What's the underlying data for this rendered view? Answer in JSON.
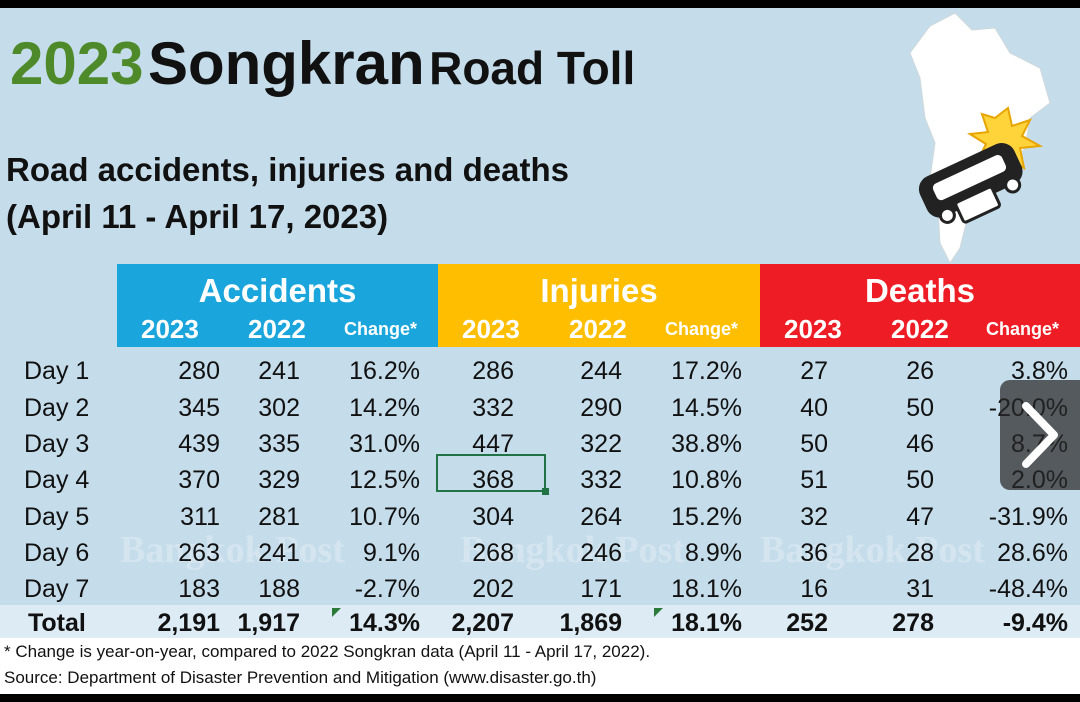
{
  "title": {
    "year": "2023",
    "main": "Songkran",
    "sub": "Road Toll"
  },
  "subtitle": {
    "line1": "Road accidents, injuries and deaths",
    "line2": "(April 11 - April 17, 2023)"
  },
  "groups": {
    "accidents": "Accidents",
    "injuries": "Injuries",
    "deaths": "Deaths"
  },
  "subheaders": {
    "y2023": "2023",
    "y2022": "2022",
    "change": "Change*"
  },
  "rows": [
    {
      "label": "Day 1",
      "vals": [
        "280",
        "241",
        "16.2%",
        "286",
        "244",
        "17.2%",
        "27",
        "26",
        "3.8%"
      ]
    },
    {
      "label": "Day 2",
      "vals": [
        "345",
        "302",
        "14.2%",
        "332",
        "290",
        "14.5%",
        "40",
        "50",
        "-20.0%"
      ]
    },
    {
      "label": "Day 3",
      "vals": [
        "439",
        "335",
        "31.0%",
        "447",
        "322",
        "38.8%",
        "50",
        "46",
        "8.7%"
      ]
    },
    {
      "label": "Day 4",
      "vals": [
        "370",
        "329",
        "12.5%",
        "368",
        "332",
        "10.8%",
        "51",
        "50",
        "2.0%"
      ]
    },
    {
      "label": "Day 5",
      "vals": [
        "311",
        "281",
        "10.7%",
        "304",
        "264",
        "15.2%",
        "32",
        "47",
        "-31.9%"
      ]
    },
    {
      "label": "Day 6",
      "vals": [
        "263",
        "241",
        "9.1%",
        "268",
        "246",
        "8.9%",
        "36",
        "28",
        "28.6%"
      ]
    },
    {
      "label": "Day 7",
      "vals": [
        "183",
        "188",
        "-2.7%",
        "202",
        "171",
        "18.1%",
        "16",
        "31",
        "-48.4%"
      ]
    }
  ],
  "total": {
    "label": "Total",
    "vals": [
      "2,191",
      "1,917",
      "14.3%",
      "2,207",
      "1,869",
      "18.1%",
      "252",
      "278",
      "-9.4%"
    ]
  },
  "footnote": "* Change is year-on-year, compared to 2022 Songkran data (April 11 - April 17, 2022).",
  "source": "Source: Department of Disaster Prevention and Mitigation (www.disaster.go.th)",
  "watermark": "Bangkok Post",
  "colors": {
    "accidents": "#1aa6dc",
    "injuries": "#ffbf00",
    "deaths": "#ee1c24",
    "year_green": "#4f8a2a",
    "background": "#c5dcea"
  },
  "icons": {
    "map": "thailand-map-icon",
    "crash": "car-crash-icon",
    "next": "chevron-right-icon"
  }
}
